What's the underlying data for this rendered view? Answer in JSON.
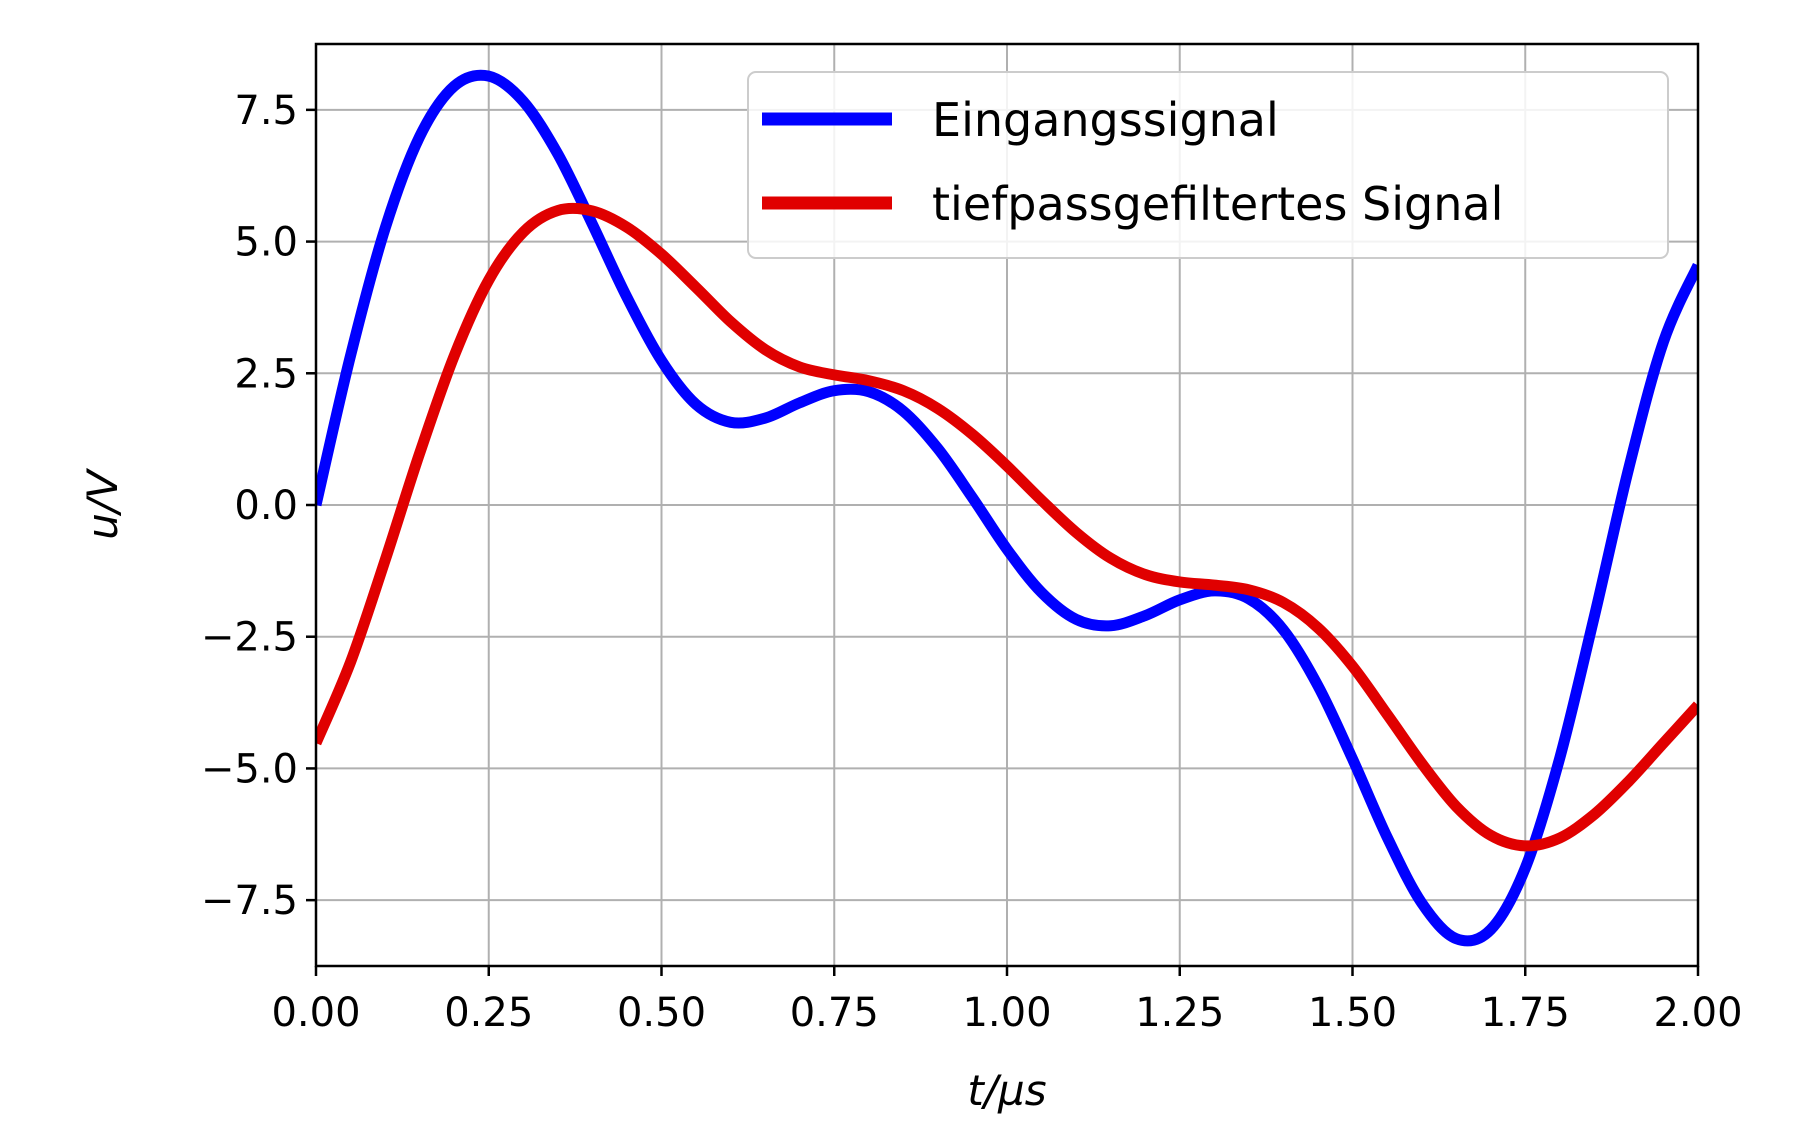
{
  "chart_data": {
    "type": "line",
    "title": "",
    "xlabel": "t/µs",
    "ylabel": "u/V",
    "xlim": [
      0,
      2
    ],
    "ylim": [
      -8.75,
      8.75
    ],
    "grid": true,
    "legend_position": "top-right",
    "xticks": [
      0,
      0.25,
      0.5,
      0.75,
      1,
      1.25,
      1.5,
      1.75,
      2
    ],
    "xtick_labels": [
      "0.00",
      "0.25",
      "0.50",
      "0.75",
      "1.00",
      "1.25",
      "1.50",
      "1.75",
      "2.00"
    ],
    "yticks": [
      7.5,
      5,
      2.5,
      0,
      -2.5,
      -5,
      -7.5
    ],
    "ytick_labels": [
      "7.5",
      "5.0",
      "2.5",
      "0.0",
      "−2.5",
      "−5.0",
      "−7.5"
    ],
    "series": [
      {
        "name": "Eingangssignal",
        "color": "#0000ff",
        "x": [
          0,
          0.05,
          0.1,
          0.15,
          0.2,
          0.25,
          0.3,
          0.35,
          0.4,
          0.45,
          0.5,
          0.55,
          0.6,
          0.65,
          0.7,
          0.75,
          0.8,
          0.85,
          0.9,
          0.95,
          1,
          1.05,
          1.1,
          1.15,
          1.2,
          1.25,
          1.3,
          1.35,
          1.4,
          1.45,
          1.5,
          1.55,
          1.6,
          1.65,
          1.7,
          1.75,
          1.8,
          1.85,
          1.9,
          1.95,
          2
        ],
        "y": [
          0,
          2.84,
          5.25,
          6.99,
          7.95,
          8.14,
          7.66,
          6.66,
          5.33,
          3.94,
          2.74,
          1.91,
          1.57,
          1.65,
          1.94,
          2.17,
          2.15,
          1.78,
          1.07,
          0.14,
          -0.84,
          -1.66,
          -2.17,
          -2.29,
          -2.1,
          -1.8,
          -1.63,
          -1.78,
          -2.37,
          -3.43,
          -4.82,
          -6.3,
          -7.55,
          -8.23,
          -8.06,
          -6.89,
          -4.8,
          -2.11,
          0.71,
          3.1,
          4.55
        ]
      },
      {
        "name": "tiefpassgefiltertes Signal",
        "color": "#e00000",
        "x": [
          0,
          0.05,
          0.1,
          0.15,
          0.2,
          0.25,
          0.3,
          0.35,
          0.4,
          0.45,
          0.5,
          0.55,
          0.6,
          0.65,
          0.7,
          0.75,
          0.8,
          0.85,
          0.9,
          0.95,
          1,
          1.05,
          1.1,
          1.15,
          1.2,
          1.25,
          1.3,
          1.35,
          1.4,
          1.45,
          1.5,
          1.55,
          1.6,
          1.65,
          1.7,
          1.75,
          1.8,
          1.85,
          1.9,
          1.95,
          2
        ],
        "y": [
          -4.52,
          -2.98,
          -1.05,
          0.98,
          2.83,
          4.27,
          5.18,
          5.59,
          5.58,
          5.27,
          4.76,
          4.13,
          3.48,
          2.95,
          2.62,
          2.47,
          2.36,
          2.17,
          1.83,
          1.34,
          0.74,
          0.09,
          -0.52,
          -1.01,
          -1.32,
          -1.46,
          -1.52,
          -1.61,
          -1.85,
          -2.33,
          -3.06,
          -3.97,
          -4.9,
          -5.72,
          -6.27,
          -6.47,
          -6.32,
          -5.87,
          -5.24,
          -4.52,
          -3.8
        ]
      }
    ]
  }
}
